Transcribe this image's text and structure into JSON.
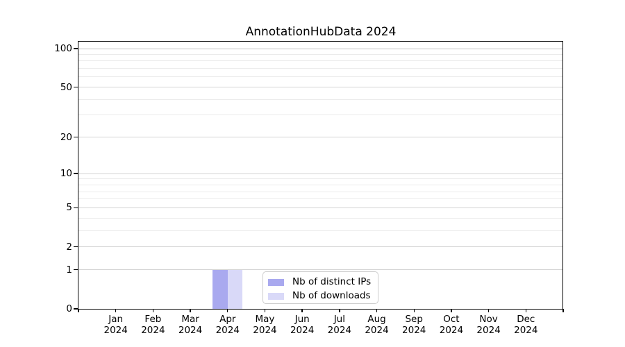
{
  "chart_data": {
    "type": "bar",
    "title": "AnnotationHubData 2024",
    "categories": [
      "Jan",
      "Feb",
      "Mar",
      "Apr",
      "May",
      "Jun",
      "Jul",
      "Aug",
      "Sep",
      "Oct",
      "Nov",
      "Dec"
    ],
    "x_tick_year": "2024",
    "series": [
      {
        "name": "Nb of distinct IPs",
        "color": "#a9a9ef",
        "values": [
          0,
          0,
          0,
          1,
          0,
          0,
          0,
          0,
          0,
          0,
          0,
          0
        ]
      },
      {
        "name": "Nb of downloads",
        "color": "#d9d9f8",
        "values": [
          0,
          0,
          0,
          1,
          0,
          0,
          0,
          0,
          0,
          0,
          0,
          0
        ]
      }
    ],
    "y_axis": {
      "scale": "log10(value+1)",
      "ticks": [
        0,
        1,
        2,
        5,
        10,
        20,
        50,
        100
      ],
      "minor_ticks": [
        3,
        4,
        6,
        7,
        8,
        9,
        30,
        40,
        60,
        70,
        80,
        90
      ],
      "max_tick": 100
    },
    "legend": {
      "position": "lower center",
      "entries": [
        "Nb of distinct IPs",
        "Nb of downloads"
      ]
    },
    "colors": {
      "axis": "#000000",
      "text": "#000000",
      "grid_major": "#d4d4d4",
      "grid_top_decade": "#c0c0c0",
      "grid_minor": "#ebebeb",
      "background": "#ffffff"
    },
    "grid": "horizontal-on"
  }
}
